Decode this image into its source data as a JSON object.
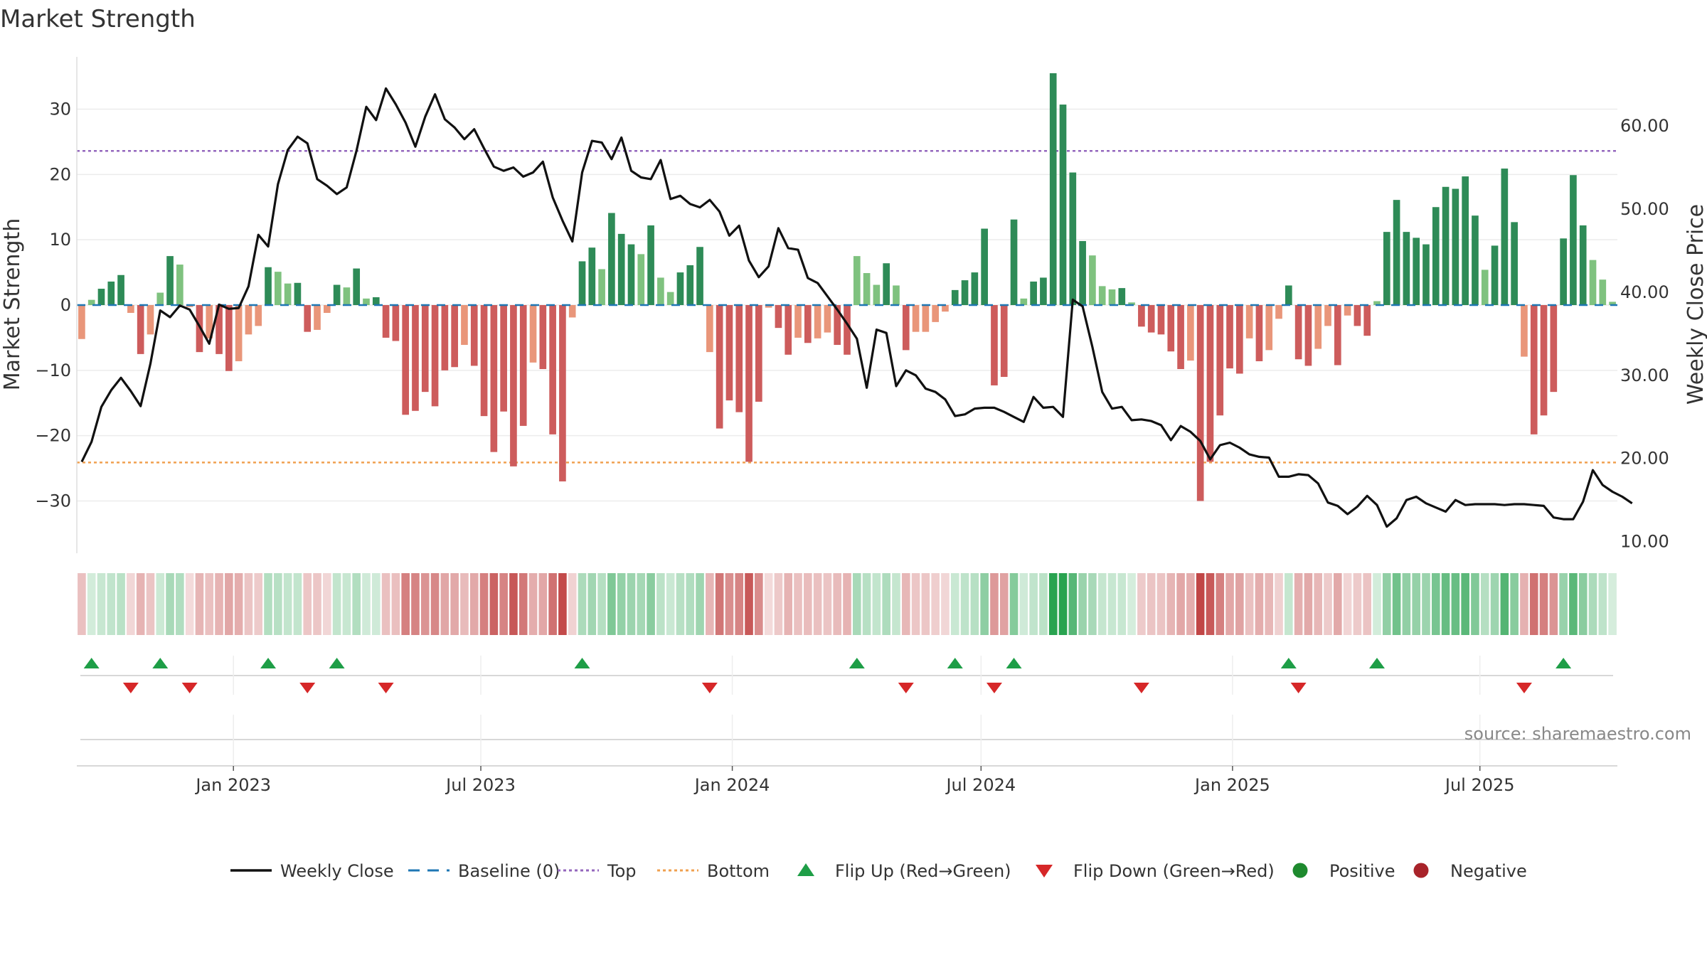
{
  "chart_data": {
    "title": "Market Strength",
    "source": "source: sharemaestro.com",
    "left_axis": {
      "label": "Market Strength",
      "range": [
        -38,
        38
      ],
      "ticks": [
        -30,
        -20,
        -10,
        0,
        10,
        20,
        30
      ],
      "tick_labels": [
        "−30",
        "−20",
        "−10",
        "0",
        "10",
        "20",
        "30"
      ]
    },
    "right_axis": {
      "label": "Weekly Close Price",
      "range": [
        8.6,
        68.3
      ],
      "ticks": [
        10,
        20,
        30,
        40,
        50,
        60
      ],
      "tick_labels": [
        "10.00",
        "20.00",
        "30.00",
        "40.00",
        "50.00",
        "60.00"
      ]
    },
    "top_level": 23.6,
    "bottom_level": -24.1,
    "x_axis": {
      "start_date": "2022-09-12",
      "end_date": "2025-10-06",
      "ticks": [
        {
          "date": "2023-01-01",
          "label": "Jan 2023"
        },
        {
          "date": "2023-07-01",
          "label": "Jul 2023"
        },
        {
          "date": "2024-01-01",
          "label": "Jan 2024"
        },
        {
          "date": "2024-07-01",
          "label": "Jul 2024"
        },
        {
          "date": "2025-01-01",
          "label": "Jan 2025"
        },
        {
          "date": "2025-07-01",
          "label": "Jul 2025"
        }
      ]
    },
    "strength": [
      -5.2,
      0.8,
      2.5,
      3.6,
      4.6,
      -1.2,
      -7.5,
      -4.5,
      1.9,
      7.5,
      6.2,
      -0.3,
      -7.2,
      -5.1,
      -7.5,
      -10.1,
      -8.6,
      -4.5,
      -3.2,
      5.8,
      5.1,
      3.3,
      3.4,
      -4.1,
      -3.8,
      -1.2,
      3.1,
      2.7,
      5.6,
      1.0,
      1.2,
      -5.0,
      -5.5,
      -16.8,
      -16.2,
      -13.3,
      -15.5,
      -10.0,
      -9.5,
      -6.1,
      -9.3,
      -17.0,
      -22.5,
      -16.3,
      -24.7,
      -18.5,
      -8.8,
      -9.8,
      -19.8,
      -27.0,
      -1.9,
      6.7,
      8.8,
      5.5,
      14.1,
      10.9,
      9.3,
      7.8,
      12.2,
      4.2,
      2.0,
      5.0,
      6.1,
      8.9,
      -7.2,
      -18.9,
      -14.6,
      -16.4,
      -24.0,
      -14.8,
      -0.4,
      -3.5,
      -7.6,
      -5.0,
      -5.8,
      -5.1,
      -4.2,
      -6.1,
      -7.6,
      7.5,
      4.9,
      3.1,
      6.4,
      3.0,
      -6.9,
      -4.1,
      -4.1,
      -2.6,
      -1.0,
      2.3,
      3.8,
      5.0,
      11.7,
      -12.3,
      -11.0,
      13.1,
      1.0,
      3.6,
      4.2,
      35.5,
      30.7,
      20.3,
      9.8,
      7.6,
      2.9,
      2.4,
      2.6,
      0.4,
      -3.3,
      -4.2,
      -4.5,
      -7.1,
      -9.8,
      -8.5,
      -30.0,
      -24.0,
      -16.9,
      -9.7,
      -10.5,
      -5.1,
      -8.6,
      -6.9,
      -2.1,
      3.0,
      -8.3,
      -9.3,
      -6.7,
      -3.2,
      -9.2,
      -1.6,
      -3.2,
      -4.7,
      0.6,
      11.2,
      16.1,
      11.2,
      10.3,
      9.3,
      15.0,
      18.1,
      17.8,
      19.7,
      13.7,
      5.4,
      9.1,
      20.9,
      12.7,
      -7.9,
      -19.8,
      -16.9,
      -13.3,
      10.2,
      19.9,
      12.2,
      6.9,
      3.9,
      0.5
    ],
    "close": [
      19.6,
      22.0,
      26.2,
      28.2,
      29.7,
      28.1,
      26.3,
      31.4,
      37.8,
      37.0,
      38.4,
      37.9,
      35.9,
      33.8,
      38.5,
      38.0,
      38.1,
      40.7,
      46.9,
      45.5,
      53.0,
      57.1,
      58.7,
      57.9,
      53.6,
      52.8,
      51.8,
      52.6,
      57.0,
      62.3,
      60.7,
      64.5,
      62.6,
      60.4,
      57.5,
      61.1,
      63.8,
      60.8,
      59.8,
      58.4,
      59.6,
      57.3,
      55.1,
      54.6,
      55.0,
      53.9,
      54.4,
      55.7,
      51.4,
      48.6,
      46.1,
      54.4,
      58.2,
      58.0,
      56.0,
      58.6,
      54.6,
      53.8,
      53.6,
      55.9,
      51.2,
      51.6,
      50.6,
      50.2,
      51.1,
      49.7,
      46.8,
      48.0,
      43.8,
      41.8,
      43.1,
      47.7,
      45.3,
      45.1,
      41.7,
      41.1,
      39.5,
      37.9,
      36.2,
      34.4,
      28.5,
      35.5,
      35.1,
      28.7,
      30.6,
      30.0,
      28.4,
      28.0,
      27.1,
      25.1,
      25.3,
      26.0,
      26.1,
      26.1,
      25.6,
      25.0,
      24.4,
      27.4,
      26.1,
      26.2,
      25.0,
      39.1,
      38.3,
      33.4,
      28.0,
      26.0,
      26.2,
      24.6,
      24.7,
      24.5,
      24.0,
      22.2,
      23.9,
      23.2,
      22.1,
      19.9,
      21.6,
      21.9,
      21.3,
      20.5,
      20.2,
      20.1,
      17.8,
      17.8,
      18.1,
      18.0,
      17.0,
      14.7,
      14.3,
      13.3,
      14.2,
      15.5,
      14.4,
      11.8,
      12.8,
      15.0,
      15.4,
      14.6,
      14.1,
      13.6,
      15.0,
      14.4,
      14.5,
      14.5,
      14.5,
      14.4,
      14.5,
      14.5,
      14.4,
      14.3,
      12.9,
      12.7,
      12.7,
      14.8,
      18.6,
      16.8,
      16.0,
      15.4,
      14.6
    ]
  },
  "legend": [
    {
      "label": "Weekly Close",
      "symbol": "line",
      "color": "#111111"
    },
    {
      "label": "Baseline (0)",
      "symbol": "dash",
      "color": "#1f77b4"
    },
    {
      "label": "Top",
      "symbol": "dot",
      "color": "#9467bd"
    },
    {
      "label": "Bottom",
      "symbol": "dot",
      "color": "#f0a050"
    },
    {
      "label": "Flip Up (Red→Green)",
      "symbol": "tri-up",
      "color": "#1e9e47"
    },
    {
      "label": "Flip Down (Green→Red)",
      "symbol": "tri-down",
      "color": "#d62728"
    },
    {
      "label": "Positive",
      "symbol": "circle",
      "color": "#1e8a2e"
    },
    {
      "label": "Negative",
      "symbol": "circle",
      "color": "#a8232a"
    }
  ],
  "colors": {
    "pos_strong": "#2e8b57",
    "pos_weak": "#7fc27f",
    "neg_strong": "#cd5c5c",
    "neg_weak": "#e9967a",
    "price_line": "#111111",
    "grid": "#ececec"
  }
}
